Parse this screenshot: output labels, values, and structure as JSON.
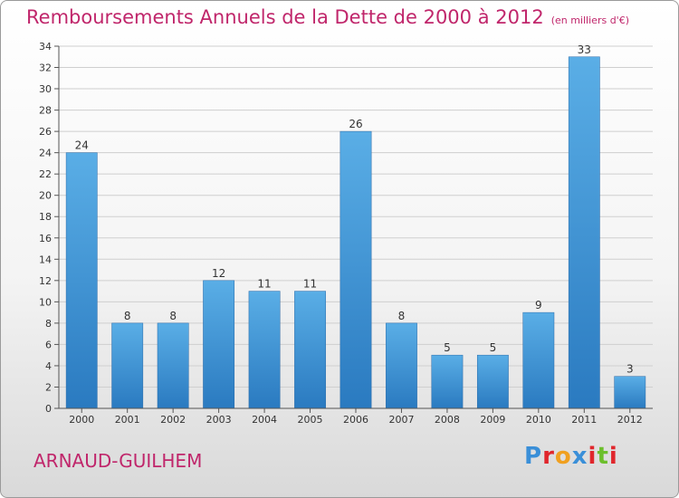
{
  "header": {
    "title": "Remboursements Annuels de la Dette de 2000 à 2012",
    "subtitle": "(en milliers d'€)"
  },
  "footer": {
    "commune": "ARNAUD-GUILHEM",
    "logo_text": "Proxiti"
  },
  "colors": {
    "title": "#c0266b",
    "bar_top": "#5aaee6",
    "bar_bottom": "#2a7ac0"
  },
  "chart_data": {
    "type": "bar",
    "title": "Remboursements Annuels de la Dette de 2000 à 2012",
    "subtitle": "(en milliers d'€)",
    "categories": [
      "2000",
      "2001",
      "2002",
      "2003",
      "2004",
      "2005",
      "2006",
      "2007",
      "2008",
      "2009",
      "2010",
      "2011",
      "2012"
    ],
    "values": [
      24,
      8,
      8,
      12,
      11,
      11,
      26,
      8,
      5,
      5,
      9,
      33,
      3
    ],
    "ylim": [
      0,
      34
    ],
    "yticks": [
      0,
      2,
      4,
      6,
      8,
      10,
      12,
      14,
      16,
      18,
      20,
      22,
      24,
      26,
      28,
      30,
      32,
      34
    ],
    "grid": true,
    "legend": "none"
  }
}
